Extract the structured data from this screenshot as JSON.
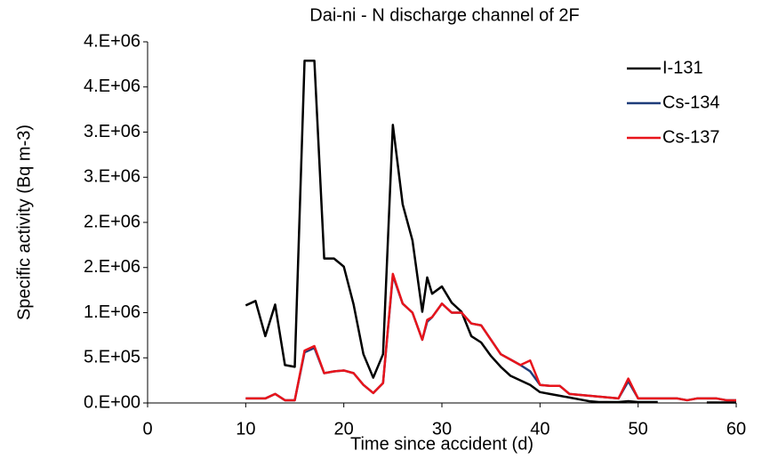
{
  "chart_data": {
    "type": "line",
    "title": "Dai-ni - N discharge channel of 2F",
    "x_label": "Time since accident (d)",
    "y_label": "Specific activity (Bq m-3)",
    "x": [
      10,
      11,
      12,
      13,
      14,
      15,
      16,
      17,
      18,
      19,
      20,
      21,
      22,
      23,
      24,
      25,
      26,
      27,
      28,
      28.5,
      29,
      30,
      31,
      32,
      33,
      34,
      35,
      36,
      37,
      38,
      39,
      40,
      41,
      42,
      43,
      44,
      45,
      46,
      47,
      48,
      49,
      50,
      51,
      52,
      53,
      54,
      55,
      56,
      57,
      58,
      59,
      60
    ],
    "series": [
      {
        "name": "I-131",
        "color": "#000000",
        "values": [
          1080000,
          1130000,
          740000,
          1090000,
          420000,
          400000,
          3790000,
          3790000,
          1600000,
          1600000,
          1510000,
          1090000,
          540000,
          280000,
          540000,
          3080000,
          2200000,
          1800000,
          1010000,
          1390000,
          1210000,
          1290000,
          1110000,
          1010000,
          740000,
          670000,
          520000,
          400000,
          300000,
          250000,
          200000,
          120000,
          100000,
          80000,
          60000,
          40000,
          20000,
          10000,
          10000,
          10000,
          20000,
          10000,
          10000,
          10000,
          null,
          null,
          null,
          null,
          5000,
          5000,
          5000,
          5000
        ]
      },
      {
        "name": "Cs-134",
        "color": "#1f3d7a",
        "values": [
          50000,
          50000,
          50000,
          100000,
          30000,
          30000,
          560000,
          610000,
          330000,
          350000,
          360000,
          330000,
          200000,
          110000,
          220000,
          1410000,
          1100000,
          1000000,
          700000,
          900000,
          950000,
          1100000,
          1000000,
          1000000,
          880000,
          860000,
          700000,
          540000,
          480000,
          420000,
          350000,
          200000,
          190000,
          190000,
          100000,
          90000,
          80000,
          70000,
          60000,
          50000,
          240000,
          50000,
          50000,
          50000,
          50000,
          50000,
          30000,
          50000,
          50000,
          50000,
          30000,
          30000
        ]
      },
      {
        "name": "Cs-137",
        "color": "#e8141b",
        "values": [
          50000,
          50000,
          50000,
          100000,
          30000,
          30000,
          580000,
          630000,
          330000,
          350000,
          360000,
          330000,
          200000,
          110000,
          220000,
          1430000,
          1100000,
          1000000,
          700000,
          920000,
          950000,
          1100000,
          1000000,
          1000000,
          880000,
          860000,
          700000,
          540000,
          480000,
          420000,
          470000,
          200000,
          190000,
          190000,
          100000,
          90000,
          80000,
          70000,
          60000,
          50000,
          270000,
          50000,
          50000,
          50000,
          50000,
          50000,
          30000,
          50000,
          50000,
          50000,
          30000,
          30000
        ]
      }
    ],
    "xlim": [
      0,
      60
    ],
    "xticks": [
      0,
      10,
      20,
      30,
      40,
      50,
      60
    ],
    "ylim": [
      0,
      4000000
    ],
    "yticks": [
      {
        "value": 0,
        "label": "0.E+00"
      },
      {
        "value": 500000,
        "label": "5.E+05"
      },
      {
        "value": 1000000,
        "label": "1.E+06"
      },
      {
        "value": 1500000,
        "label": "2.E+06"
      },
      {
        "value": 2000000,
        "label": "2.E+06"
      },
      {
        "value": 2500000,
        "label": "3.E+06"
      },
      {
        "value": 3000000,
        "label": "3.E+06"
      },
      {
        "value": 3500000,
        "label": "4.E+06"
      },
      {
        "value": 4000000,
        "label": "4.E+06"
      }
    ],
    "legend": "upper right",
    "grid": false
  }
}
